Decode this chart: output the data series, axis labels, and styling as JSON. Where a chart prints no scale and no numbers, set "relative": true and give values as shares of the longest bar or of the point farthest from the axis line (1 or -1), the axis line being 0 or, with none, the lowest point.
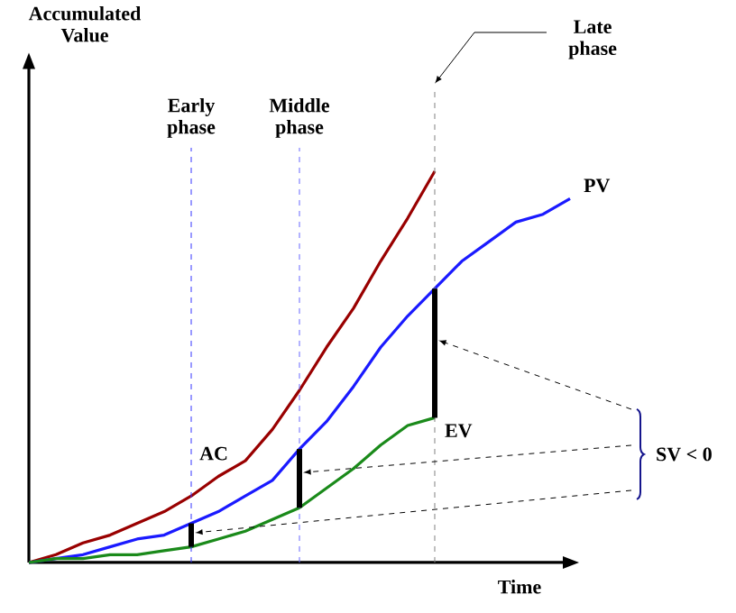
{
  "chart_data": {
    "type": "line",
    "xlabel": "Time",
    "relative": true,
    "marker": "none",
    "line_style": "solid",
    "categories": [
      null,
      null,
      null,
      null,
      null,
      null,
      null,
      null,
      null,
      null,
      null,
      null,
      null,
      null,
      null,
      null,
      null,
      null,
      null,
      null,
      null
    ],
    "series": [
      {
        "name": "AC",
        "color": "#990000",
        "values": [
          0,
          0.02,
          0.05,
          0.07,
          0.1,
          0.13,
          0.17,
          0.22,
          0.26,
          0.34,
          0.44,
          0.55,
          0.65,
          0.77,
          0.88,
          1,
          null,
          null,
          null,
          null,
          null
        ]
      },
      {
        "name": "PV",
        "color": "#1a1aff",
        "values": [
          0,
          0.01,
          0.02,
          0.04,
          0.06,
          0.07,
          0.1,
          0.13,
          0.17,
          0.21,
          0.29,
          0.36,
          0.45,
          0.55,
          0.63,
          0.7,
          0.77,
          0.82,
          0.87,
          0.89,
          0.93
        ]
      },
      {
        "name": "EV",
        "color": "#1a8a1a",
        "values": [
          0,
          0.01,
          0.01,
          0.02,
          0.02,
          0.03,
          0.04,
          0.06,
          0.08,
          0.11,
          0.14,
          0.19,
          0.24,
          0.3,
          0.35,
          0.37,
          null,
          null,
          null,
          null,
          null
        ]
      }
    ],
    "annotations": [
      "Accumulated Value",
      "Early phase",
      "Middle phase",
      "Late phase",
      "SV < 0"
    ]
  }
}
